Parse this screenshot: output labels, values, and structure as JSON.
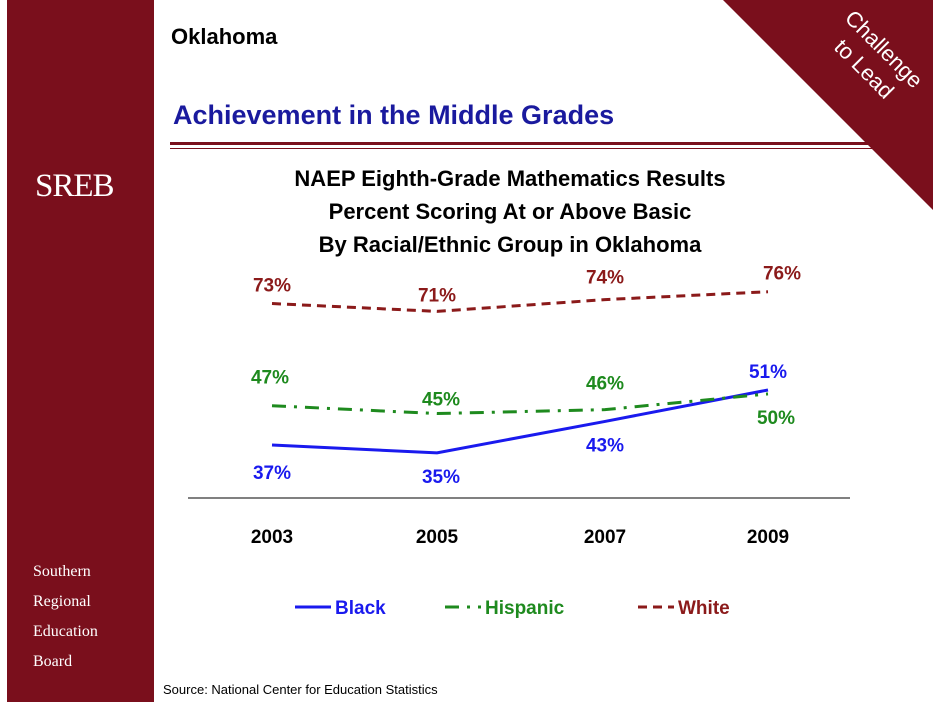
{
  "header": {
    "state": "Oklahoma",
    "heading": "Achievement in the Middle Grades",
    "banner_line1": "Challenge",
    "banner_line2": "to Lead"
  },
  "sidebar": {
    "logo": "SREB",
    "org_lines": [
      "Southern",
      "Regional",
      "Education",
      "Board"
    ]
  },
  "colors": {
    "brand": "#7a0f1c",
    "heading": "#1a1a9e",
    "black_series": "#1a1aee",
    "hispanic_series": "#1e8a1e",
    "white_series": "#8b1a1a"
  },
  "chart_data": {
    "type": "line",
    "title_lines": [
      "NAEP Eighth-Grade Mathematics Results",
      "Percent Scoring At or Above Basic",
      "By Racial/Ethnic Group in Oklahoma"
    ],
    "categories": [
      "2003",
      "2005",
      "2007",
      "2009"
    ],
    "series": [
      {
        "name": "Black",
        "values": [
          37,
          35,
          43,
          51
        ],
        "labels": [
          "37%",
          "35%",
          "43%",
          "51%"
        ],
        "style": "solid",
        "color": "#1a1aee"
      },
      {
        "name": "Hispanic",
        "values": [
          47,
          45,
          46,
          50
        ],
        "labels": [
          "47%",
          "45%",
          "46%",
          "50%"
        ],
        "style": "dash-dot",
        "color": "#1e8a1e"
      },
      {
        "name": "White",
        "values": [
          73,
          71,
          74,
          76
        ],
        "labels": [
          "73%",
          "71%",
          "74%",
          "76%"
        ],
        "style": "dash",
        "color": "#8b1a1a"
      }
    ],
    "legend_position": "bottom",
    "grid": false
  },
  "footer": {
    "source": "Source: National Center for Education Statistics"
  }
}
